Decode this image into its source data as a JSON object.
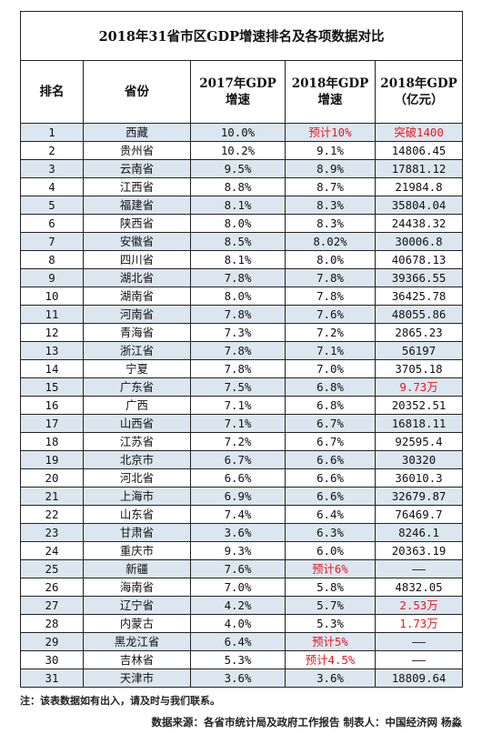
{
  "title": "2018年31省市区GDP增速排名及各项数据对比",
  "headers": {
    "rank": "排名",
    "province": "省份",
    "gdp2017_l1": "2017年GDP",
    "gdp2017_l2": "增速",
    "gdp2018_l1": "2018年GDP",
    "gdp2018_l2": "增速",
    "total_l1": "2018年GDP",
    "total_l2": "（亿元）"
  },
  "highlight_color": "#e8191f",
  "row_shade_color": "#dce6f1",
  "rows": [
    {
      "rank": "1",
      "name": "西藏",
      "g2017": "10.0%",
      "g2018": "预计10%",
      "total": "突破1400",
      "g2018_red": true,
      "total_red": true
    },
    {
      "rank": "2",
      "name": "贵州省",
      "g2017": "10.2%",
      "g2018": "9.1%",
      "total": "14806.45"
    },
    {
      "rank": "3",
      "name": "云南省",
      "g2017": "9.5%",
      "g2018": "8.9%",
      "total": "17881.12"
    },
    {
      "rank": "4",
      "name": "江西省",
      "g2017": "8.8%",
      "g2018": "8.7%",
      "total": "21984.8"
    },
    {
      "rank": "5",
      "name": "福建省",
      "g2017": "8.1%",
      "g2018": "8.3%",
      "total": "35804.04"
    },
    {
      "rank": "6",
      "name": "陕西省",
      "g2017": "8.0%",
      "g2018": "8.3%",
      "total": "24438.32"
    },
    {
      "rank": "7",
      "name": "安徽省",
      "g2017": "8.5%",
      "g2018": "8.02%",
      "total": "30006.8"
    },
    {
      "rank": "8",
      "name": "四川省",
      "g2017": "8.1%",
      "g2018": "8.0%",
      "total": "40678.13"
    },
    {
      "rank": "9",
      "name": "湖北省",
      "g2017": "7.8%",
      "g2018": "7.8%",
      "total": "39366.55"
    },
    {
      "rank": "10",
      "name": "湖南省",
      "g2017": "8.0%",
      "g2018": "7.8%",
      "total": "36425.78"
    },
    {
      "rank": "11",
      "name": "河南省",
      "g2017": "7.8%",
      "g2018": "7.6%",
      "total": "48055.86"
    },
    {
      "rank": "12",
      "name": "青海省",
      "g2017": "7.3%",
      "g2018": "7.2%",
      "total": "2865.23"
    },
    {
      "rank": "13",
      "name": "浙江省",
      "g2017": "7.8%",
      "g2018": "7.1%",
      "total": "56197"
    },
    {
      "rank": "14",
      "name": "宁夏",
      "g2017": "7.8%",
      "g2018": "7.0%",
      "total": "3705.18"
    },
    {
      "rank": "15",
      "name": "广东省",
      "g2017": "7.5%",
      "g2018": "6.8%",
      "total": "9.73万",
      "total_red": true
    },
    {
      "rank": "16",
      "name": "广西",
      "g2017": "7.1%",
      "g2018": "6.8%",
      "total": "20352.51"
    },
    {
      "rank": "17",
      "name": "山西省",
      "g2017": "7.1%",
      "g2018": "6.7%",
      "total": "16818.11"
    },
    {
      "rank": "18",
      "name": "江苏省",
      "g2017": "7.2%",
      "g2018": "6.7%",
      "total": "92595.4"
    },
    {
      "rank": "19",
      "name": "北京市",
      "g2017": "6.7%",
      "g2018": "6.6%",
      "total": "30320"
    },
    {
      "rank": "20",
      "name": "河北省",
      "g2017": "6.6%",
      "g2018": "6.6%",
      "total": "36010.3"
    },
    {
      "rank": "21",
      "name": "上海市",
      "g2017": "6.9%",
      "g2018": "6.6%",
      "total": "32679.87"
    },
    {
      "rank": "22",
      "name": "山东省",
      "g2017": "7.4%",
      "g2018": "6.4%",
      "total": "76469.7"
    },
    {
      "rank": "23",
      "name": "甘肃省",
      "g2017": "3.6%",
      "g2018": "6.3%",
      "total": "8246.1"
    },
    {
      "rank": "24",
      "name": "重庆市",
      "g2017": "9.3%",
      "g2018": "6.0%",
      "total": "20363.19"
    },
    {
      "rank": "25",
      "name": "新疆",
      "g2017": "7.6%",
      "g2018": "预计6%",
      "total": "——",
      "g2018_red": true
    },
    {
      "rank": "26",
      "name": "海南省",
      "g2017": "7.0%",
      "g2018": "5.8%",
      "total": "4832.05"
    },
    {
      "rank": "27",
      "name": "辽宁省",
      "g2017": "4.2%",
      "g2018": "5.7%",
      "total": "2.53万",
      "total_red": true
    },
    {
      "rank": "28",
      "name": "内蒙古",
      "g2017": "4.0%",
      "g2018": "5.3%",
      "total": "1.73万",
      "total_red": true
    },
    {
      "rank": "29",
      "name": "黑龙江省",
      "g2017": "6.4%",
      "g2018": "预计5%",
      "total": "——",
      "g2018_red": true
    },
    {
      "rank": "30",
      "name": "吉林省",
      "g2017": "5.3%",
      "g2018": "预计4.5%",
      "total": "——",
      "g2018_red": true
    },
    {
      "rank": "31",
      "name": "天津市",
      "g2017": "3.6%",
      "g2018": "3.6%",
      "total": "18809.64"
    }
  ],
  "note": "注：该表数据如有出入，请及时与我们联系。",
  "source": "数据来源：各省市统计局及政府工作报告 制表人：中国经济网 杨淼"
}
